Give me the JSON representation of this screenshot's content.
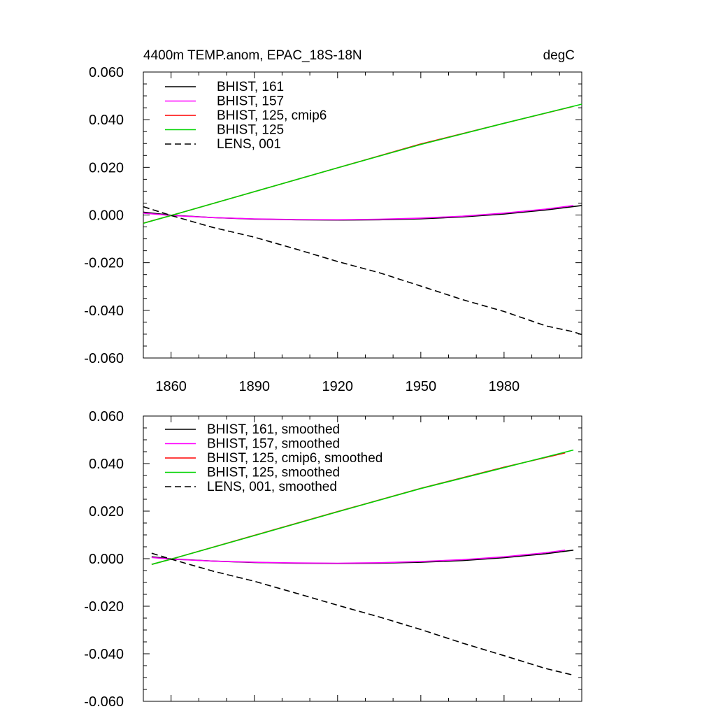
{
  "colors": {
    "BHIST_161": "#000000",
    "BHIST_157": "#ff00ff",
    "BHIST_125_cmip6": "#ff0000",
    "BHIST_125": "#00d400",
    "LENS_001": "#000000"
  },
  "chart_data": [
    {
      "type": "line",
      "title": "4400m TEMP.anom, EPAC_18S-18N",
      "units": "degC",
      "xlim": [
        1850,
        2008
      ],
      "ylim": [
        -0.06,
        0.06
      ],
      "xticks": [
        1860,
        1890,
        1920,
        1950,
        1980
      ],
      "xtick_labels": [
        "1860",
        "1890",
        "1920",
        "1950",
        "1980"
      ],
      "yticks": [
        0.06,
        0.04,
        0.02,
        0.0,
        -0.02,
        -0.04,
        -0.06
      ],
      "ytick_labels": [
        "0.060",
        "0.040",
        "0.020",
        "0.000",
        "-0.020",
        "-0.040",
        "-0.060"
      ],
      "show_x_labels": true,
      "legend": "top-left",
      "series": [
        {
          "name": "BHIST, 161",
          "key": "BHIST_161",
          "dash": false,
          "x": [
            1850,
            1860,
            1875,
            1890,
            1905,
            1920,
            1935,
            1950,
            1965,
            1980,
            1995,
            2008
          ],
          "y": [
            0.0012,
            -0.0001,
            -0.0011,
            -0.0017,
            -0.002,
            -0.0021,
            -0.002,
            -0.0016,
            -0.0008,
            0.0004,
            0.0021,
            0.004
          ]
        },
        {
          "name": "BHIST, 157",
          "key": "BHIST_157",
          "dash": false,
          "x": [
            1850,
            1860,
            1875,
            1890,
            1905,
            1920,
            1935,
            1950,
            1965,
            1980,
            1995,
            2005
          ],
          "y": [
            0.0008,
            -0.0002,
            -0.0011,
            -0.0016,
            -0.0019,
            -0.002,
            -0.0018,
            -0.0013,
            -0.0005,
            0.0008,
            0.0025,
            0.004
          ]
        },
        {
          "name": "BHIST, 125, cmip6",
          "key": "BHIST_125_cmip6",
          "dash": false,
          "x": [
            1850,
            1860,
            1890,
            1920,
            1950,
            1980,
            2005
          ],
          "y": [
            -0.0034,
            -0.0002,
            0.0098,
            0.0198,
            0.0298,
            0.0385,
            0.0456
          ]
        },
        {
          "name": "BHIST, 125",
          "key": "BHIST_125",
          "dash": false,
          "x": [
            1850,
            1860,
            1890,
            1920,
            1950,
            1980,
            2008
          ],
          "y": [
            -0.0035,
            -0.0002,
            0.0098,
            0.0198,
            0.0296,
            0.0385,
            0.0465
          ]
        },
        {
          "name": "LENS, 001",
          "key": "LENS_001",
          "dash": true,
          "x": [
            1850,
            1860,
            1875,
            1890,
            1905,
            1920,
            1935,
            1950,
            1965,
            1980,
            1995,
            2005,
            2008
          ],
          "y": [
            0.0035,
            -0.0002,
            -0.0052,
            -0.0093,
            -0.0143,
            -0.0195,
            -0.0242,
            -0.0298,
            -0.0355,
            -0.0405,
            -0.0465,
            -0.049,
            -0.0502
          ]
        }
      ]
    },
    {
      "type": "line",
      "title": "",
      "units": "",
      "xlim": [
        1850,
        2008
      ],
      "ylim": [
        -0.06,
        0.06
      ],
      "xticks": [
        1860,
        1890,
        1920,
        1950,
        1980
      ],
      "xtick_labels": [],
      "yticks": [
        0.06,
        0.04,
        0.02,
        0.0,
        -0.02,
        -0.04,
        -0.06
      ],
      "ytick_labels": [
        "0.060",
        "0.040",
        "0.020",
        "0.000",
        "-0.020",
        "-0.040",
        "-0.060"
      ],
      "show_x_labels": false,
      "legend": "top-left",
      "series": [
        {
          "name": "BHIST, 161, smoothed",
          "key": "BHIST_161",
          "dash": false,
          "x": [
            1853,
            1860,
            1875,
            1890,
            1905,
            1920,
            1935,
            1950,
            1965,
            1980,
            1995,
            2005
          ],
          "y": [
            0.0008,
            -0.0001,
            -0.001,
            -0.0016,
            -0.0019,
            -0.002,
            -0.0019,
            -0.0015,
            -0.0008,
            0.0004,
            0.0021,
            0.0036
          ]
        },
        {
          "name": "BHIST, 157, smoothed",
          "key": "BHIST_157",
          "dash": false,
          "x": [
            1853,
            1860,
            1875,
            1890,
            1905,
            1920,
            1935,
            1950,
            1965,
            1980,
            1995,
            2002
          ],
          "y": [
            0.0005,
            -0.0002,
            -0.001,
            -0.0015,
            -0.0018,
            -0.0019,
            -0.0017,
            -0.0012,
            -0.0004,
            0.0008,
            0.0025,
            0.0036
          ]
        },
        {
          "name": "BHIST, 125, cmip6, smoothed",
          "key": "BHIST_125_cmip6",
          "dash": false,
          "x": [
            1853,
            1860,
            1890,
            1920,
            1950,
            1980,
            2002
          ],
          "y": [
            -0.0024,
            -0.0002,
            0.0098,
            0.0198,
            0.0296,
            0.0385,
            0.0445
          ]
        },
        {
          "name": "BHIST, 125, smoothed",
          "key": "BHIST_125",
          "dash": false,
          "x": [
            1853,
            1860,
            1890,
            1920,
            1950,
            1980,
            2005
          ],
          "y": [
            -0.0024,
            -0.0002,
            0.0097,
            0.0197,
            0.0295,
            0.0383,
            0.0457
          ]
        },
        {
          "name": "LENS, 001, smoothed",
          "key": "LENS_001",
          "dash": true,
          "x": [
            1853,
            1860,
            1875,
            1890,
            1905,
            1920,
            1935,
            1950,
            1965,
            1980,
            1995,
            2005
          ],
          "y": [
            0.0023,
            -0.0002,
            -0.0052,
            -0.0095,
            -0.0145,
            -0.0196,
            -0.0245,
            -0.0298,
            -0.0355,
            -0.0408,
            -0.0462,
            -0.049
          ]
        }
      ]
    }
  ]
}
